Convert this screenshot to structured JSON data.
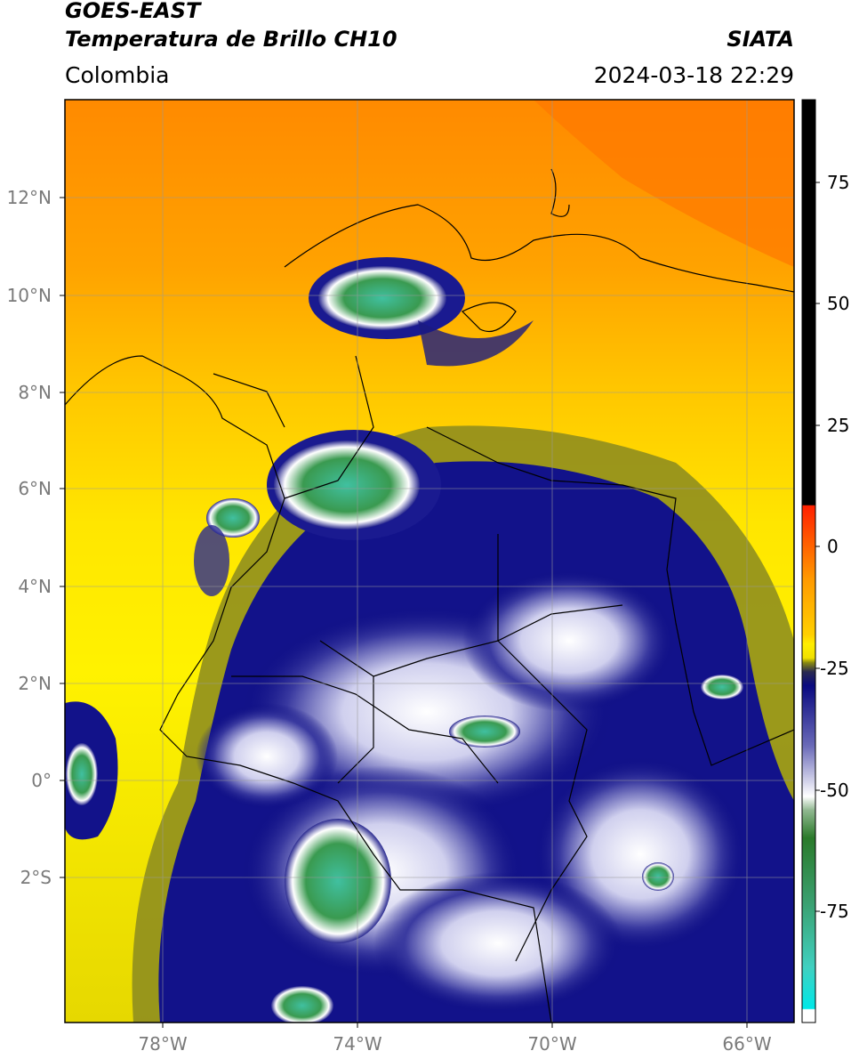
{
  "header": {
    "satellite": "GOES-EAST",
    "product": "Temperatura de Brillo CH10",
    "source": "SIATA",
    "region": "Colombia",
    "datetime": "2024-03-18 22:29"
  },
  "map": {
    "longitude_labels": [
      "78°W",
      "74°W",
      "70°W",
      "66°W"
    ],
    "latitude_labels": [
      "12°N",
      "10°N",
      "8°N",
      "6°N",
      "4°N",
      "2°N",
      "0°",
      "2°S"
    ]
  },
  "colorbar": {
    "tick_labels": [
      "75",
      "50",
      "25",
      "0",
      "-25",
      "-50",
      "-75"
    ],
    "range": [
      -95,
      90
    ],
    "colors": {
      "warm_black": "#000000",
      "red": "#ff1a00",
      "orange": "#ff8c00",
      "yellow": "#ffee00",
      "olive": "#8a8a10",
      "navy": "#0a0a80",
      "white": "#ffffff",
      "green": "#3a8a3a",
      "teal": "#3ac8b0",
      "cyan": "#00e5e5"
    }
  }
}
